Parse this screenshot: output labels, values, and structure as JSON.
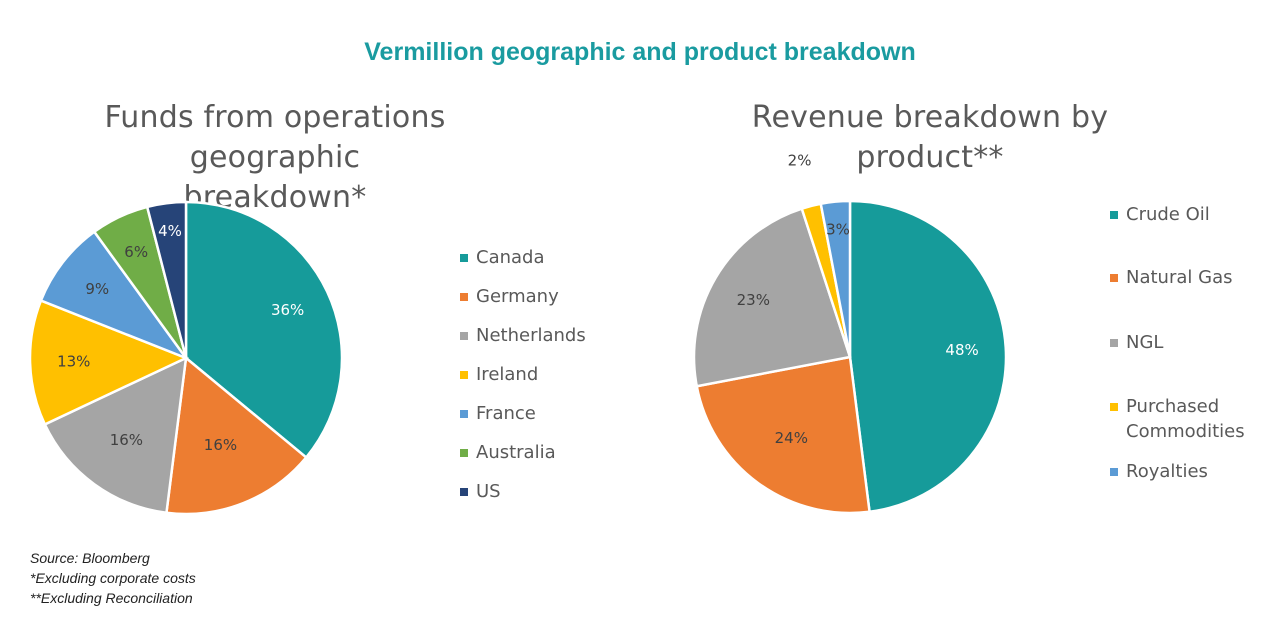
{
  "header": {
    "title": "Vermillion geographic and product breakdown"
  },
  "chart_data": [
    {
      "type": "pie",
      "title_lines": [
        "Funds from operations geographic",
        "breakdown*"
      ],
      "categories": [
        "Canada",
        "Germany",
        "Netherlands",
        "Ireland",
        "France",
        "Australia",
        "US"
      ],
      "values": [
        36,
        16,
        16,
        13,
        9,
        6,
        4
      ],
      "labels": [
        "36%",
        "16%",
        "16%",
        "13%",
        "9%",
        "6%",
        "4%"
      ],
      "colors": [
        "#169b9a",
        "#ed7d31",
        "#a5a5a5",
        "#ffc000",
        "#5b9bd5",
        "#70ad47",
        "#264478"
      ],
      "label_colors": [
        "#ffffff",
        "#404040",
        "#404040",
        "#404040",
        "#404040",
        "#404040",
        "#ffffff"
      ],
      "legend_position": "right"
    },
    {
      "type": "pie",
      "title_lines": [
        "Revenue breakdown by product**"
      ],
      "categories": [
        "Crude Oil",
        "Natural Gas",
        "NGL",
        "Purchased Commodities",
        "Royalties"
      ],
      "legend_labels": [
        [
          "Crude Oil"
        ],
        [
          "Natural Gas"
        ],
        [
          "NGL"
        ],
        [
          "Purchased",
          "Commodities"
        ],
        [
          "Royalties"
        ]
      ],
      "values": [
        48,
        24,
        23,
        2,
        3
      ],
      "labels": [
        "48%",
        "24%",
        "23%",
        "2%",
        "3%"
      ],
      "colors": [
        "#169b9a",
        "#ed7d31",
        "#a5a5a5",
        "#ffc000",
        "#5b9bd5"
      ],
      "label_colors": [
        "#ffffff",
        "#404040",
        "#404040",
        "#404040",
        "#404040"
      ],
      "legend_position": "right"
    }
  ],
  "notes": {
    "source": "Source: Bloomberg",
    "note1": "*Excluding corporate costs",
    "note2": "**Excluding Reconciliation"
  }
}
